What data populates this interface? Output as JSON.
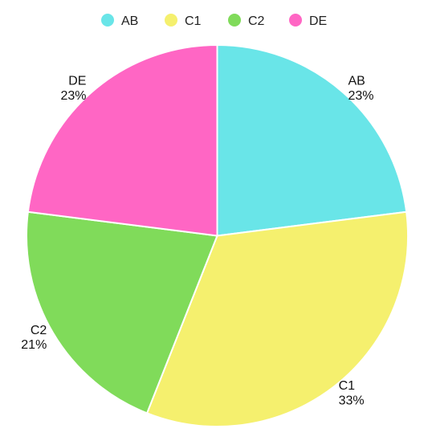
{
  "chart_data": {
    "type": "pie",
    "title": "",
    "categories": [
      "AB",
      "C1",
      "C2",
      "DE"
    ],
    "values": [
      23,
      33,
      21,
      23
    ],
    "labels": [
      "23%",
      "33%",
      "21%",
      "23%"
    ],
    "colors": [
      "#69E5E8",
      "#F5F06E",
      "#80DB5A",
      "#FF66C4"
    ],
    "legend_position": "top",
    "start_angle_deg": 0,
    "direction": "clockwise"
  }
}
